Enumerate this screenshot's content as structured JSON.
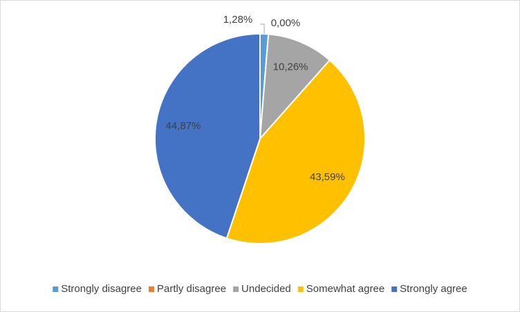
{
  "chart_data": {
    "type": "pie",
    "categories": [
      "Strongly disagree",
      "Partly disagree",
      "Undecided",
      "Somewhat agree",
      "Strongly agree"
    ],
    "values": [
      1.28,
      0,
      10.26,
      43.59,
      44.87
    ],
    "value_labels": [
      "1,28%",
      "0,00%",
      "10,26%",
      "43,59%",
      "44,87%"
    ],
    "colors": [
      "#5b9bd5",
      "#ed7d31",
      "#a5a5a5",
      "#ffc000",
      "#4472c4"
    ],
    "legend": "bottom"
  }
}
